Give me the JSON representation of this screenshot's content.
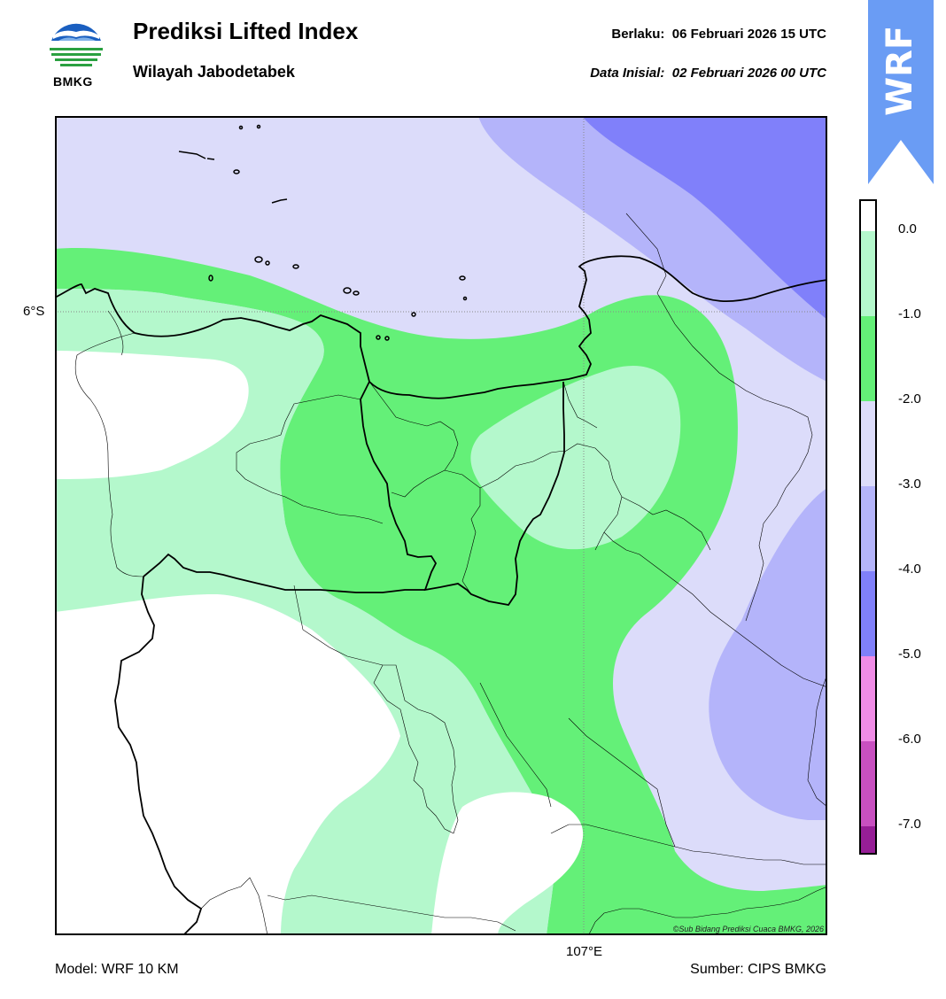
{
  "header": {
    "logo_text": "BMKG",
    "title": "Prediksi Lifted Index",
    "subtitle": "Wilayah Jabodetabek",
    "valid_label": "Berlaku:",
    "valid_value": "06 Februari 2026 15 UTC",
    "init_label": "Data Inisial:",
    "init_value": "02 Februari 2026 00 UTC"
  },
  "badge": {
    "text": "WRF",
    "color": "#6a9cf4"
  },
  "map": {
    "lat_label": "6°S",
    "lon_label": "107°E",
    "credit": "©Sub Bidang Prediksi Cuaca BMKG, 2026"
  },
  "colorbar": {
    "labels": [
      "0.0",
      "-1.0",
      "-2.0",
      "-3.0",
      "-4.0",
      "-5.0",
      "-6.0",
      "-7.0"
    ],
    "colors": [
      "#b4f8cc",
      "#64f078",
      "#dcdcfa",
      "#b4b4fa",
      "#8080fa",
      "#f08ce6",
      "#c850c0",
      "#961e96"
    ]
  },
  "footer": {
    "model": "Model: WRF 10 KM",
    "source": "Sumber: CIPS BMKG"
  }
}
